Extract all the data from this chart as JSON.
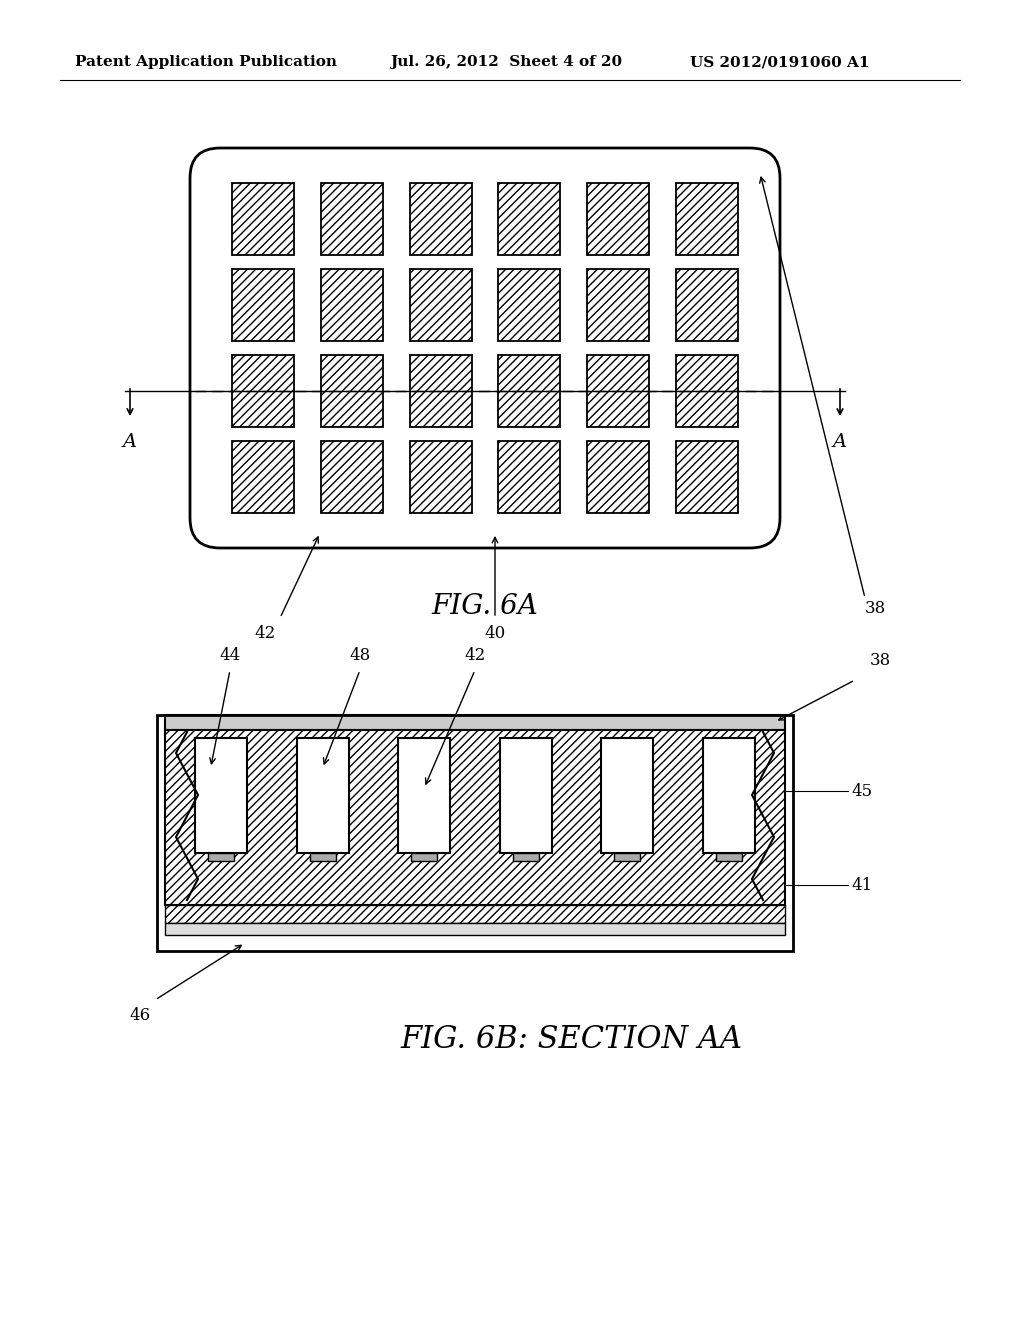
{
  "header_left": "Patent Application Publication",
  "header_mid": "Jul. 26, 2012  Sheet 4 of 20",
  "header_right": "US 2012/0191060 A1",
  "fig6a_label": "FIG. 6A",
  "fig6b_label": "FIG. 6B: SECTION AA",
  "bg_color": "#ffffff"
}
